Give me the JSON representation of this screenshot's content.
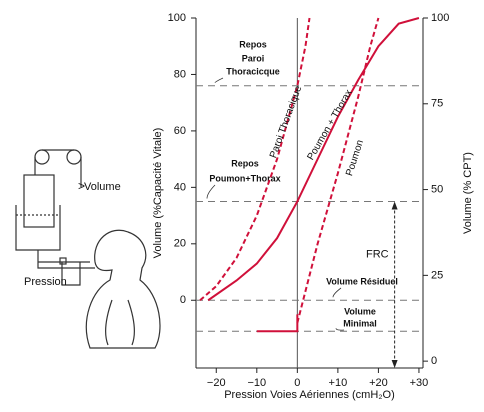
{
  "chart_data": {
    "type": "line",
    "x_label": "Pression Voies Aériennes (cmH₂O)",
    "y_label": "Volume (%Capacité Vitale)",
    "y2_label": "Volume (% CPT)",
    "xlim": [
      -25,
      31
    ],
    "ylim": [
      -24,
      100
    ],
    "y2lim": [
      -2,
      100
    ],
    "xticks": [
      {
        "value": -20,
        "label": "−20"
      },
      {
        "value": -10,
        "label": "−10"
      },
      {
        "value": 0,
        "label": "0"
      },
      {
        "value": 10,
        "label": "+10"
      },
      {
        "value": 20,
        "label": "+20"
      },
      {
        "value": 30,
        "label": "+30"
      }
    ],
    "yticks": [
      0,
      20,
      40,
      60,
      80,
      100
    ],
    "y2ticks": [
      0,
      25,
      50,
      75,
      100
    ],
    "series": [
      {
        "label": "Paroi Thoracique",
        "color": "#d0103a",
        "dashed": true,
        "x": [
          -24,
          -20,
          -15,
          -10,
          -5,
          0,
          2,
          3
        ],
        "values": [
          0,
          5,
          15,
          30,
          50,
          76,
          90,
          100
        ]
      },
      {
        "label": "Poumon + Thorax",
        "color": "#d0103a",
        "dashed": false,
        "x": [
          -22,
          -15,
          -10,
          -5,
          0,
          5,
          10,
          15,
          20,
          25,
          30
        ],
        "values": [
          0,
          7,
          13,
          22,
          35,
          50,
          65,
          78,
          90,
          98,
          100
        ]
      },
      {
        "label": "Poumon",
        "color": "#d0103a",
        "dashed": true,
        "x": [
          0,
          5,
          10,
          15,
          18,
          20
        ],
        "values": [
          -8,
          20,
          45,
          72,
          90,
          100
        ]
      },
      {
        "color": "#d0103a",
        "dashed": false,
        "x": [
          -10,
          0,
          0
        ],
        "values": [
          -11,
          -11,
          -5
        ]
      }
    ],
    "reference_lines": [
      {
        "value": 76,
        "lines": [
          "Repos",
          "Paroi",
          "Thoracicque"
        ]
      },
      {
        "value": 35,
        "lines": [
          "Repos",
          "Poumon+Thorax"
        ]
      },
      {
        "value": 0,
        "lines": [
          "Volume Résiduel"
        ]
      },
      {
        "value": -11,
        "lines": [
          "Volume",
          "Minimal"
        ]
      }
    ],
    "frc": {
      "label": "FRC",
      "x": 24,
      "from": 35
    }
  },
  "diagram": {
    "volume_label": "Volume",
    "pressure_label": "Pression"
  }
}
